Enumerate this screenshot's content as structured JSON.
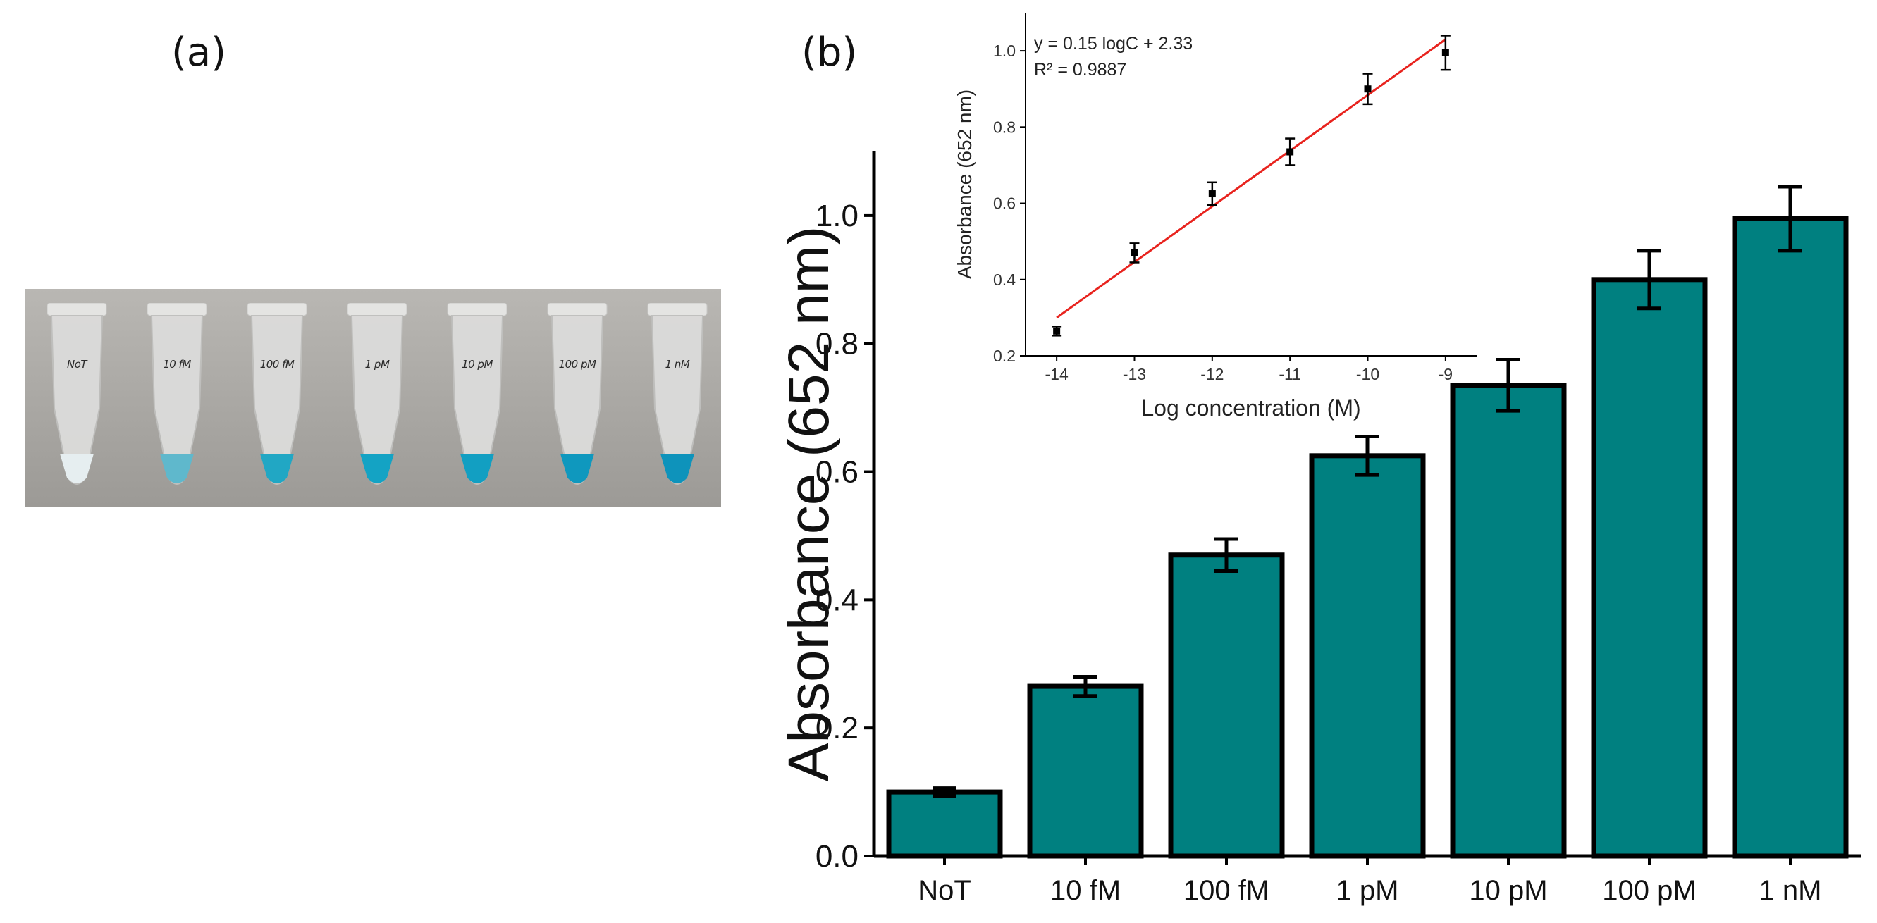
{
  "panels": {
    "a": "(a)",
    "b": "(b)"
  },
  "photo": {
    "tubes": [
      {
        "label": "NoT",
        "liquid": "#e6eef0"
      },
      {
        "label": "10 fM",
        "liquid": "#5fb8cc"
      },
      {
        "label": "100 fM",
        "liquid": "#21a7c4"
      },
      {
        "label": "1 pM",
        "liquid": "#14a3c4"
      },
      {
        "label": "10 pM",
        "liquid": "#129fc2"
      },
      {
        "label": "100 pM",
        "liquid": "#0f98be"
      },
      {
        "label": "1 nM",
        "liquid": "#0e93bb"
      }
    ]
  },
  "colors": {
    "bar": "#008080",
    "fit_line": "#e8231e",
    "axis": "#000000"
  },
  "chart_data": [
    {
      "type": "bar",
      "categories": [
        "NoT",
        "10 fM",
        "100 fM",
        "1 pM",
        "10 pM",
        "100 pM",
        "1 nM"
      ],
      "values": [
        0.1,
        0.265,
        0.47,
        0.625,
        0.735,
        0.9,
        0.995
      ],
      "errors": [
        0.006,
        0.015,
        0.025,
        0.03,
        0.04,
        0.045,
        0.05
      ],
      "title": "",
      "xlabel": "",
      "ylabel": "Absorbance (652 nm)",
      "ylim": [
        0,
        1.1
      ],
      "yticks": [
        "0.0",
        "0.2",
        "0.4",
        "0.6",
        "0.8",
        "1.0"
      ]
    },
    {
      "type": "scatter",
      "x": [
        -14,
        -13,
        -12,
        -11,
        -10,
        -9
      ],
      "y": [
        0.265,
        0.47,
        0.625,
        0.735,
        0.9,
        0.995
      ],
      "errors": [
        0.012,
        0.025,
        0.03,
        0.035,
        0.04,
        0.045
      ],
      "fit": {
        "slope": 0.15,
        "intercept": 2.33,
        "x_range": [
          -14,
          -9
        ],
        "y_range": [
          0.3,
          1.03
        ]
      },
      "equation": "y = 0.15 logC + 2.33",
      "r2": "R² = 0.9887",
      "xlabel": "Log concentration (M)",
      "ylabel": "Absorbance (652 nm)",
      "xlim": [
        -14.4,
        -8.6
      ],
      "ylim": [
        0.2,
        1.1
      ],
      "xticks": [
        "-14",
        "-13",
        "-12",
        "-11",
        "-10",
        "-9"
      ],
      "yticks": [
        "0.2",
        "0.4",
        "0.6",
        "0.8",
        "1.0"
      ]
    }
  ]
}
